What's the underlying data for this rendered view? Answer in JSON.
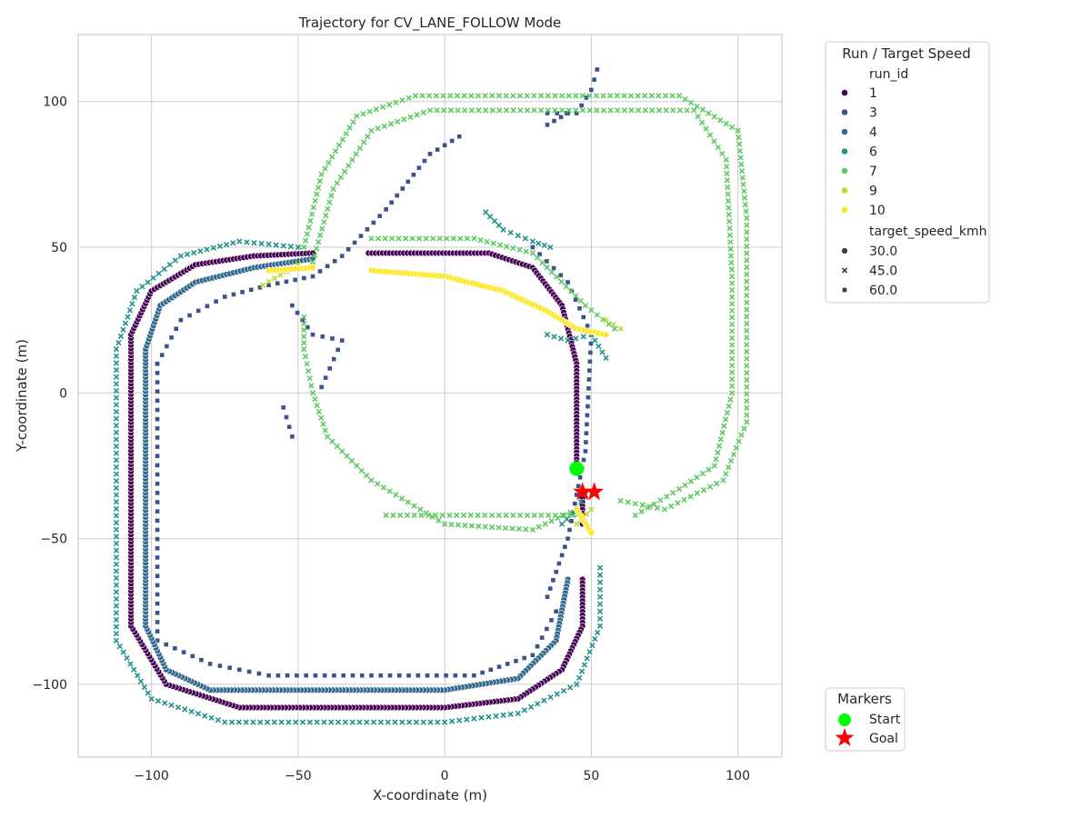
{
  "chart_data": {
    "type": "scatter",
    "title": "Trajectory for CV_LANE_FOLLOW Mode",
    "xlabel": "X-coordinate (m)",
    "ylabel": "Y-coordinate (m)",
    "xlim": [
      -125,
      115
    ],
    "ylim": [
      -125,
      123
    ],
    "xticks": [
      -100,
      -50,
      0,
      50,
      100
    ],
    "yticks": [
      -100,
      -50,
      0,
      50,
      100
    ],
    "xtick_labels": [
      "−100",
      "−50",
      "0",
      "50",
      "100"
    ],
    "ytick_labels": [
      "−100",
      "−50",
      "0",
      "50",
      "100"
    ],
    "grid": true,
    "legend": {
      "title": "Run / Target Speed",
      "hue_title": "run_id",
      "style_title": "target_speed_kmh",
      "placement": "outside-right-top"
    },
    "markers_legend": {
      "title": "Markers",
      "placement": "outside-right-bottom",
      "items": [
        {
          "label": "Start",
          "color": "#00ff00",
          "marker": "circle"
        },
        {
          "label": "Goal",
          "color": "#ff0000",
          "marker": "star"
        }
      ]
    },
    "series": [
      {
        "name": "1",
        "color": "#440154",
        "marker": "circle",
        "target_speed_kmh": 30.0,
        "paths": [
          [
            [
              47,
              -64
            ],
            [
              47,
              -80
            ],
            [
              40,
              -95
            ],
            [
              25,
              -105
            ],
            [
              0,
              -108
            ],
            [
              -70,
              -108
            ],
            [
              -95,
              -100
            ],
            [
              -107,
              -80
            ],
            [
              -107,
              20
            ],
            [
              -100,
              35
            ],
            [
              -85,
              44
            ],
            [
              -65,
              47
            ],
            [
              -45,
              48
            ]
          ],
          [
            [
              -26,
              48
            ],
            [
              15,
              48
            ],
            [
              30,
              43
            ],
            [
              40,
              30
            ],
            [
              45,
              10
            ],
            [
              45,
              -24
            ]
          ],
          [
            [
              47,
              -35
            ],
            [
              47,
              -45
            ]
          ]
        ]
      },
      {
        "name": "3",
        "color": "#3b528b",
        "marker": "square",
        "target_speed_kmh": 60.0,
        "paths": [
          [
            [
              -55,
              -5
            ],
            [
              -52,
              -15
            ]
          ],
          [
            [
              -98,
              10
            ],
            [
              -98,
              -85
            ],
            [
              -80,
              -93
            ],
            [
              -60,
              -97
            ],
            [
              10,
              -97
            ],
            [
              30,
              -90
            ],
            [
              38,
              -75
            ]
          ],
          [
            [
              -98,
              10
            ],
            [
              -90,
              25
            ],
            [
              -75,
              33
            ],
            [
              -60,
              37
            ],
            [
              -45,
              40
            ],
            [
              -35,
              47
            ],
            [
              -20,
              63
            ],
            [
              -5,
              82
            ],
            [
              5,
              88
            ]
          ],
          [
            [
              35,
              92
            ],
            [
              42,
              96
            ]
          ],
          [
            [
              30,
              50
            ],
            [
              42,
              38
            ],
            [
              50,
              20
            ],
            [
              48,
              -20
            ],
            [
              42,
              -50
            ],
            [
              35,
              -70
            ]
          ],
          [
            [
              -52,
              30
            ],
            [
              -45,
              20
            ],
            [
              -35,
              18
            ],
            [
              -42,
              2
            ]
          ],
          [
            [
              35,
              96
            ],
            [
              45,
              96
            ],
            [
              50,
              104
            ],
            [
              52,
              111
            ]
          ]
        ]
      },
      {
        "name": "4",
        "color": "#31688e",
        "marker": "circle",
        "target_speed_kmh": 30.0,
        "paths": [
          [
            [
              42,
              -64
            ],
            [
              38,
              -85
            ],
            [
              25,
              -98
            ],
            [
              0,
              -102
            ],
            [
              -80,
              -102
            ],
            [
              -95,
              -95
            ],
            [
              -102,
              -80
            ],
            [
              -102,
              15
            ],
            [
              -97,
              30
            ],
            [
              -85,
              38
            ],
            [
              -65,
              43
            ],
            [
              -45,
              46
            ]
          ]
        ]
      },
      {
        "name": "6",
        "color": "#21918c",
        "marker": "x",
        "target_speed_kmh": 45.0,
        "paths": [
          [
            [
              53,
              -60
            ],
            [
              53,
              -80
            ],
            [
              45,
              -100
            ],
            [
              25,
              -110
            ],
            [
              0,
              -113
            ],
            [
              -75,
              -113
            ],
            [
              -100,
              -105
            ],
            [
              -112,
              -85
            ],
            [
              -112,
              15
            ],
            [
              -105,
              35
            ],
            [
              -90,
              47
            ],
            [
              -70,
              52
            ],
            [
              -50,
              50
            ]
          ],
          [
            [
              14,
              62
            ],
            [
              20,
              56
            ],
            [
              30,
              52
            ],
            [
              36,
              50
            ]
          ],
          [
            [
              35,
              20
            ],
            [
              42,
              18
            ],
            [
              50,
              20
            ],
            [
              55,
              12
            ]
          ],
          [
            [
              40,
              -45
            ],
            [
              45,
              -40
            ],
            [
              48,
              -35
            ]
          ]
        ]
      },
      {
        "name": "7",
        "color": "#5ec962",
        "marker": "x",
        "target_speed_kmh": 45.0,
        "paths": [
          [
            [
              -48,
              50
            ],
            [
              -42,
              75
            ],
            [
              -30,
              95
            ],
            [
              -10,
              102
            ],
            [
              40,
              102
            ],
            [
              80,
              102
            ],
            [
              100,
              90
            ],
            [
              103,
              60
            ],
            [
              103,
              -10
            ],
            [
              95,
              -30
            ],
            [
              75,
              -40
            ],
            [
              60,
              -37
            ]
          ],
          [
            [
              -45,
              45
            ],
            [
              -38,
              70
            ],
            [
              -25,
              90
            ],
            [
              -5,
              97
            ],
            [
              40,
              97
            ],
            [
              85,
              97
            ],
            [
              96,
              80
            ],
            [
              98,
              40
            ],
            [
              98,
              0
            ],
            [
              92,
              -25
            ],
            [
              80,
              -33
            ],
            [
              65,
              -42
            ]
          ],
          [
            [
              -48,
              26
            ],
            [
              -48,
              15
            ],
            [
              -45,
              0
            ],
            [
              -40,
              -15
            ],
            [
              -25,
              -30
            ],
            [
              0,
              -45
            ],
            [
              30,
              -47
            ],
            [
              45,
              -40
            ]
          ],
          [
            [
              -25,
              53
            ],
            [
              10,
              53
            ],
            [
              30,
              48
            ],
            [
              48,
              30
            ],
            [
              58,
              22
            ]
          ],
          [
            [
              -20,
              -42
            ],
            [
              45,
              -42
            ]
          ]
        ]
      },
      {
        "name": "9",
        "color": "#b5de2b",
        "marker": "x",
        "target_speed_kmh": 45.0,
        "paths": [
          [
            [
              -62,
              37
            ],
            [
              -50,
              44
            ]
          ],
          [
            [
              45,
              -45
            ],
            [
              50,
              -40
            ]
          ],
          [
            [
              55,
              25
            ],
            [
              60,
              22
            ]
          ]
        ]
      },
      {
        "name": "10",
        "color": "#fde725",
        "marker": "circle",
        "target_speed_kmh": 30.0,
        "paths": [
          [
            [
              -60,
              42
            ],
            [
              -45,
              43
            ]
          ],
          [
            [
              -25,
              42
            ],
            [
              0,
              40
            ],
            [
              20,
              35
            ],
            [
              35,
              28
            ],
            [
              45,
              22
            ],
            [
              55,
              20
            ]
          ],
          [
            [
              45,
              -40
            ],
            [
              50,
              -48
            ]
          ]
        ]
      }
    ],
    "start": {
      "x": 45,
      "y": -26
    },
    "goals": [
      {
        "x": 47,
        "y": -34
      },
      {
        "x": 51,
        "y": -34
      }
    ],
    "style_levels": [
      {
        "label": "30.0",
        "marker": "circle"
      },
      {
        "label": "45.0",
        "marker": "x"
      },
      {
        "label": "60.0",
        "marker": "square"
      }
    ]
  }
}
